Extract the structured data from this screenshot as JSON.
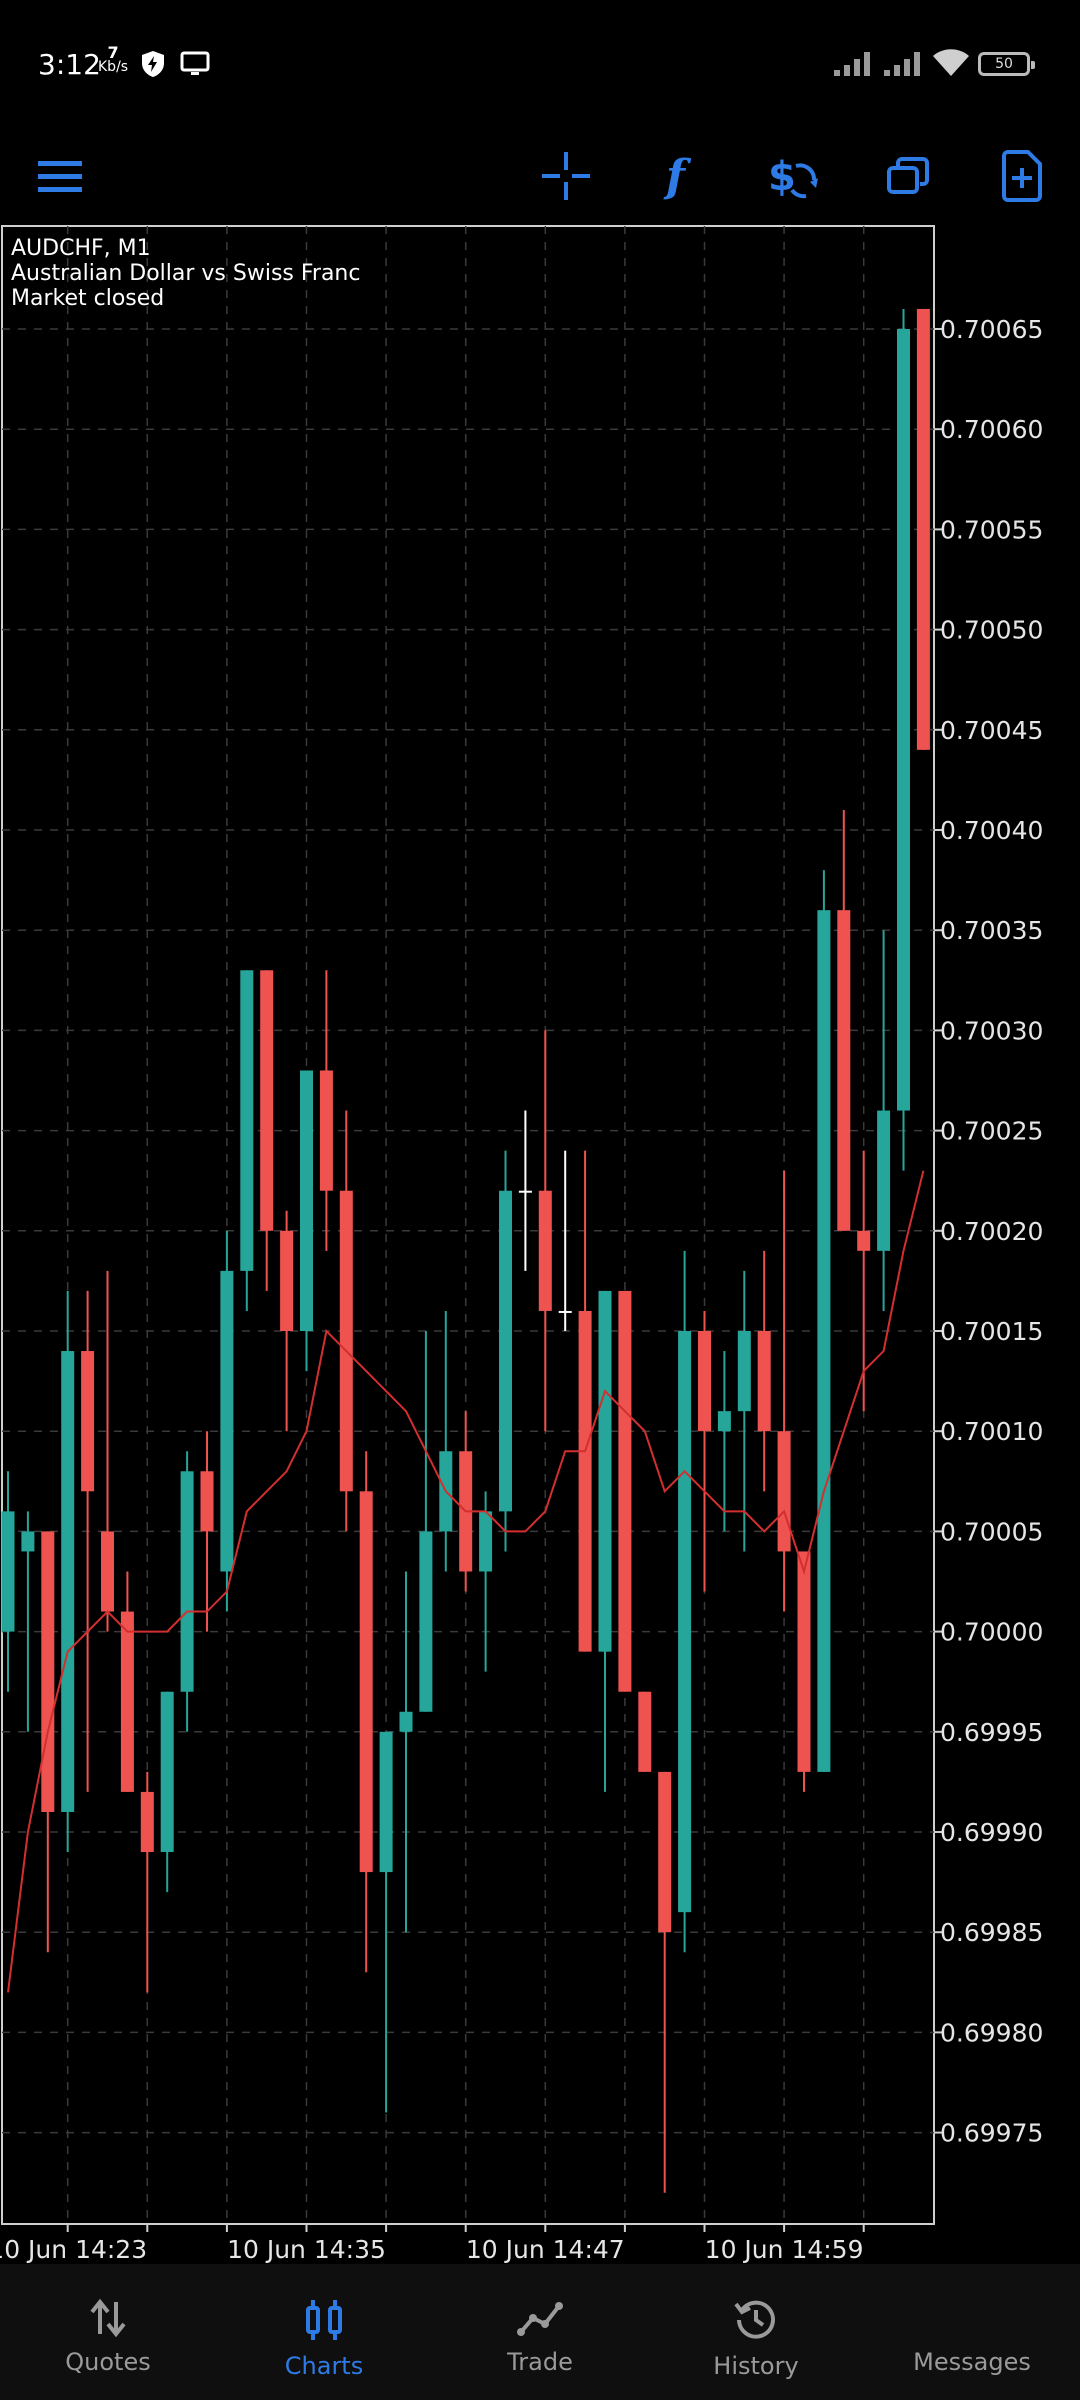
{
  "status_bar": {
    "time": "3:12",
    "net_speed_value": "7",
    "net_speed_unit": "Kb/s",
    "battery": "50"
  },
  "toolbar": {
    "icons": [
      "menu-icon",
      "crosshair-icon",
      "indicators-icon",
      "trade-dollar-icon",
      "windows-icon",
      "new-chart-icon"
    ],
    "accent_color": "#2e7be6"
  },
  "chart_info": {
    "symbol_line": "AUDCHF, M1",
    "description": "Australian Dollar vs Swiss Franc",
    "market_status": "Market closed"
  },
  "chart_data": {
    "type": "candlestick",
    "symbol": "AUDCHF",
    "timeframe": "M1",
    "y_ticks": [
      "0.70065",
      "0.70060",
      "0.70055",
      "0.70050",
      "0.70045",
      "0.70040",
      "0.70035",
      "0.70030",
      "0.70025",
      "0.70020",
      "0.70015",
      "0.70010",
      "0.70005",
      "0.70000",
      "0.69995",
      "0.69990",
      "0.69985",
      "0.69980",
      "0.69975"
    ],
    "ylim": [
      0.6997,
      0.70068
    ],
    "x_ticks": [
      "10 Jun 14:23",
      "10 Jun 14:35",
      "10 Jun 14:47",
      "10 Jun 14:59"
    ],
    "grid": true,
    "up_color": "#26a69a",
    "down_color": "#ef5350",
    "doji_color": "#ffffff",
    "ma_color": "#d32f2f",
    "candles": [
      {
        "o": 0.7,
        "h": 0.70008,
        "l": 0.69997,
        "c": 0.70006
      },
      {
        "o": 0.70004,
        "h": 0.70006,
        "l": 0.69995,
        "c": 0.70005
      },
      {
        "o": 0.70005,
        "h": 0.70005,
        "l": 0.69984,
        "c": 0.69991
      },
      {
        "o": 0.69991,
        "h": 0.70017,
        "l": 0.69989,
        "c": 0.70014
      },
      {
        "o": 0.70014,
        "h": 0.70017,
        "l": 0.69992,
        "c": 0.70007
      },
      {
        "o": 0.70005,
        "h": 0.70018,
        "l": 0.7,
        "c": 0.70001
      },
      {
        "o": 0.70001,
        "h": 0.70003,
        "l": 0.69992,
        "c": 0.69992
      },
      {
        "o": 0.69992,
        "h": 0.69993,
        "l": 0.69982,
        "c": 0.69989
      },
      {
        "o": 0.69989,
        "h": 0.69997,
        "l": 0.69987,
        "c": 0.69997
      },
      {
        "o": 0.69997,
        "h": 0.70009,
        "l": 0.69995,
        "c": 0.70008
      },
      {
        "o": 0.70008,
        "h": 0.7001,
        "l": 0.7,
        "c": 0.70005
      },
      {
        "o": 0.70003,
        "h": 0.7002,
        "l": 0.70001,
        "c": 0.70018
      },
      {
        "o": 0.70018,
        "h": 0.70033,
        "l": 0.70016,
        "c": 0.70033
      },
      {
        "o": 0.70033,
        "h": 0.70033,
        "l": 0.70017,
        "c": 0.7002
      },
      {
        "o": 0.7002,
        "h": 0.70021,
        "l": 0.7001,
        "c": 0.70015
      },
      {
        "o": 0.70015,
        "h": 0.70028,
        "l": 0.70013,
        "c": 0.70028
      },
      {
        "o": 0.70028,
        "h": 0.70033,
        "l": 0.70019,
        "c": 0.70022
      },
      {
        "o": 0.70022,
        "h": 0.70026,
        "l": 0.70005,
        "c": 0.70007
      },
      {
        "o": 0.70007,
        "h": 0.70009,
        "l": 0.69983,
        "c": 0.69988
      },
      {
        "o": 0.69988,
        "h": 0.69995,
        "l": 0.69976,
        "c": 0.69995
      },
      {
        "o": 0.69995,
        "h": 0.70003,
        "l": 0.69985,
        "c": 0.69996
      },
      {
        "o": 0.69996,
        "h": 0.70015,
        "l": 0.69996,
        "c": 0.70005
      },
      {
        "o": 0.70005,
        "h": 0.70016,
        "l": 0.70003,
        "c": 0.70009
      },
      {
        "o": 0.70009,
        "h": 0.70011,
        "l": 0.70002,
        "c": 0.70003
      },
      {
        "o": 0.70003,
        "h": 0.70007,
        "l": 0.69998,
        "c": 0.70006
      },
      {
        "o": 0.70006,
        "h": 0.70024,
        "l": 0.70004,
        "c": 0.70022
      },
      {
        "o": 0.70022,
        "h": 0.70026,
        "l": 0.70018,
        "c": 0.70022
      },
      {
        "o": 0.70022,
        "h": 0.7003,
        "l": 0.7001,
        "c": 0.70016
      },
      {
        "o": 0.70016,
        "h": 0.70024,
        "l": 0.70015,
        "c": 0.70016
      },
      {
        "o": 0.70016,
        "h": 0.70024,
        "l": 0.69999,
        "c": 0.69999
      },
      {
        "o": 0.69999,
        "h": 0.70017,
        "l": 0.69992,
        "c": 0.70017
      },
      {
        "o": 0.70017,
        "h": 0.70017,
        "l": 0.69997,
        "c": 0.69997
      },
      {
        "o": 0.69997,
        "h": 0.69997,
        "l": 0.69993,
        "c": 0.69993
      },
      {
        "o": 0.69993,
        "h": 0.69993,
        "l": 0.69972,
        "c": 0.69985
      },
      {
        "o": 0.69986,
        "h": 0.70019,
        "l": 0.69984,
        "c": 0.70015
      },
      {
        "o": 0.70015,
        "h": 0.70016,
        "l": 0.70002,
        "c": 0.7001
      },
      {
        "o": 0.7001,
        "h": 0.70014,
        "l": 0.70005,
        "c": 0.70011
      },
      {
        "o": 0.70011,
        "h": 0.70018,
        "l": 0.70004,
        "c": 0.70015
      },
      {
        "o": 0.70015,
        "h": 0.70019,
        "l": 0.70007,
        "c": 0.7001
      },
      {
        "o": 0.7001,
        "h": 0.70023,
        "l": 0.70001,
        "c": 0.70004
      },
      {
        "o": 0.70004,
        "h": 0.70004,
        "l": 0.69992,
        "c": 0.69993
      },
      {
        "o": 0.69993,
        "h": 0.70038,
        "l": 0.69993,
        "c": 0.70036
      },
      {
        "o": 0.70036,
        "h": 0.70041,
        "l": 0.7002,
        "c": 0.7002
      },
      {
        "o": 0.7002,
        "h": 0.70024,
        "l": 0.70011,
        "c": 0.70019
      },
      {
        "o": 0.70019,
        "h": 0.70035,
        "l": 0.70016,
        "c": 0.70026
      },
      {
        "o": 0.70026,
        "h": 0.70066,
        "l": 0.70023,
        "c": 0.70065
      },
      {
        "o": 0.70066,
        "h": 0.70066,
        "l": 0.70044,
        "c": 0.70044
      }
    ],
    "moving_average": [
      0.69982,
      0.6999,
      0.69995,
      0.69999,
      0.7,
      0.70001,
      0.7,
      0.7,
      0.7,
      0.70001,
      0.70001,
      0.70002,
      0.70006,
      0.70007,
      0.70008,
      0.7001,
      0.70015,
      0.70014,
      0.70013,
      0.70012,
      0.70011,
      0.70009,
      0.70007,
      0.70006,
      0.70006,
      0.70005,
      0.70005,
      0.70006,
      0.70009,
      0.70009,
      0.70012,
      0.70011,
      0.7001,
      0.70007,
      0.70008,
      0.70007,
      0.70006,
      0.70006,
      0.70005,
      0.70006,
      0.70003,
      0.70007,
      0.7001,
      0.70013,
      0.70014,
      0.70019,
      0.70023
    ]
  },
  "bottom_nav": {
    "items": [
      {
        "label": "Quotes",
        "icon": "quotes-arrows-icon",
        "active": false
      },
      {
        "label": "Charts",
        "icon": "charts-candles-icon",
        "active": true
      },
      {
        "label": "Trade",
        "icon": "trade-line-icon",
        "active": false
      },
      {
        "label": "History",
        "icon": "history-clock-icon",
        "active": false
      },
      {
        "label": "Messages",
        "icon": "messages-icon",
        "active": false
      }
    ]
  }
}
